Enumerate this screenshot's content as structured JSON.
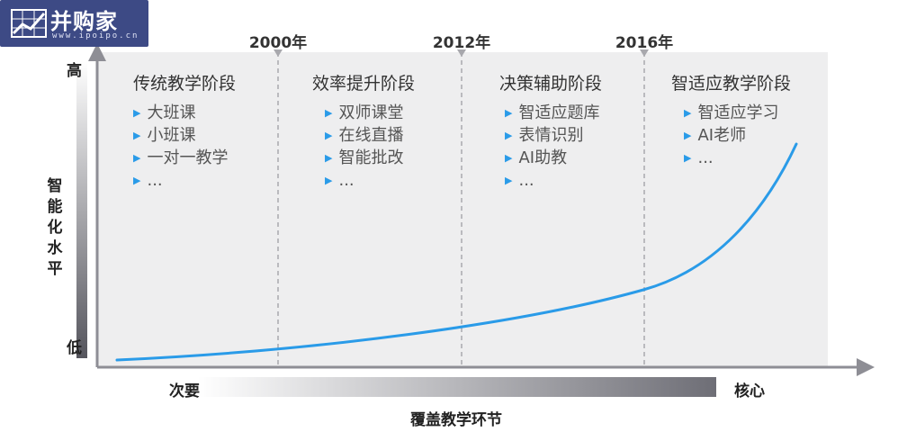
{
  "logo": {
    "name": "并购家",
    "url": "www.ipoipo.cn"
  },
  "y_axis": {
    "title": "智能化水平",
    "high": "高",
    "low": "低"
  },
  "x_axis": {
    "title": "覆盖教学环节",
    "left": "次要",
    "right": "核心"
  },
  "milestones": [
    "2000年",
    "2012年",
    "2016年"
  ],
  "stages": [
    {
      "title": "传统教学阶段",
      "items": [
        "大班课",
        "小班课",
        "一对一教学",
        "..."
      ]
    },
    {
      "title": "效率提升阶段",
      "items": [
        "双师课堂",
        "在线直播",
        "智能批改",
        "..."
      ]
    },
    {
      "title": "决策辅助阶段",
      "items": [
        "智适应题库",
        "表情识别",
        "AI助教",
        "..."
      ]
    },
    {
      "title": "智适应教学阶段",
      "items": [
        "智适应学习",
        "AI老师",
        "..."
      ]
    }
  ],
  "colors": {
    "panel": "#eeeeef",
    "curve": "#2a9be8",
    "bullet": "#2a9be8",
    "axis": "#8e8e95",
    "divider": "#a8a8ad"
  }
}
